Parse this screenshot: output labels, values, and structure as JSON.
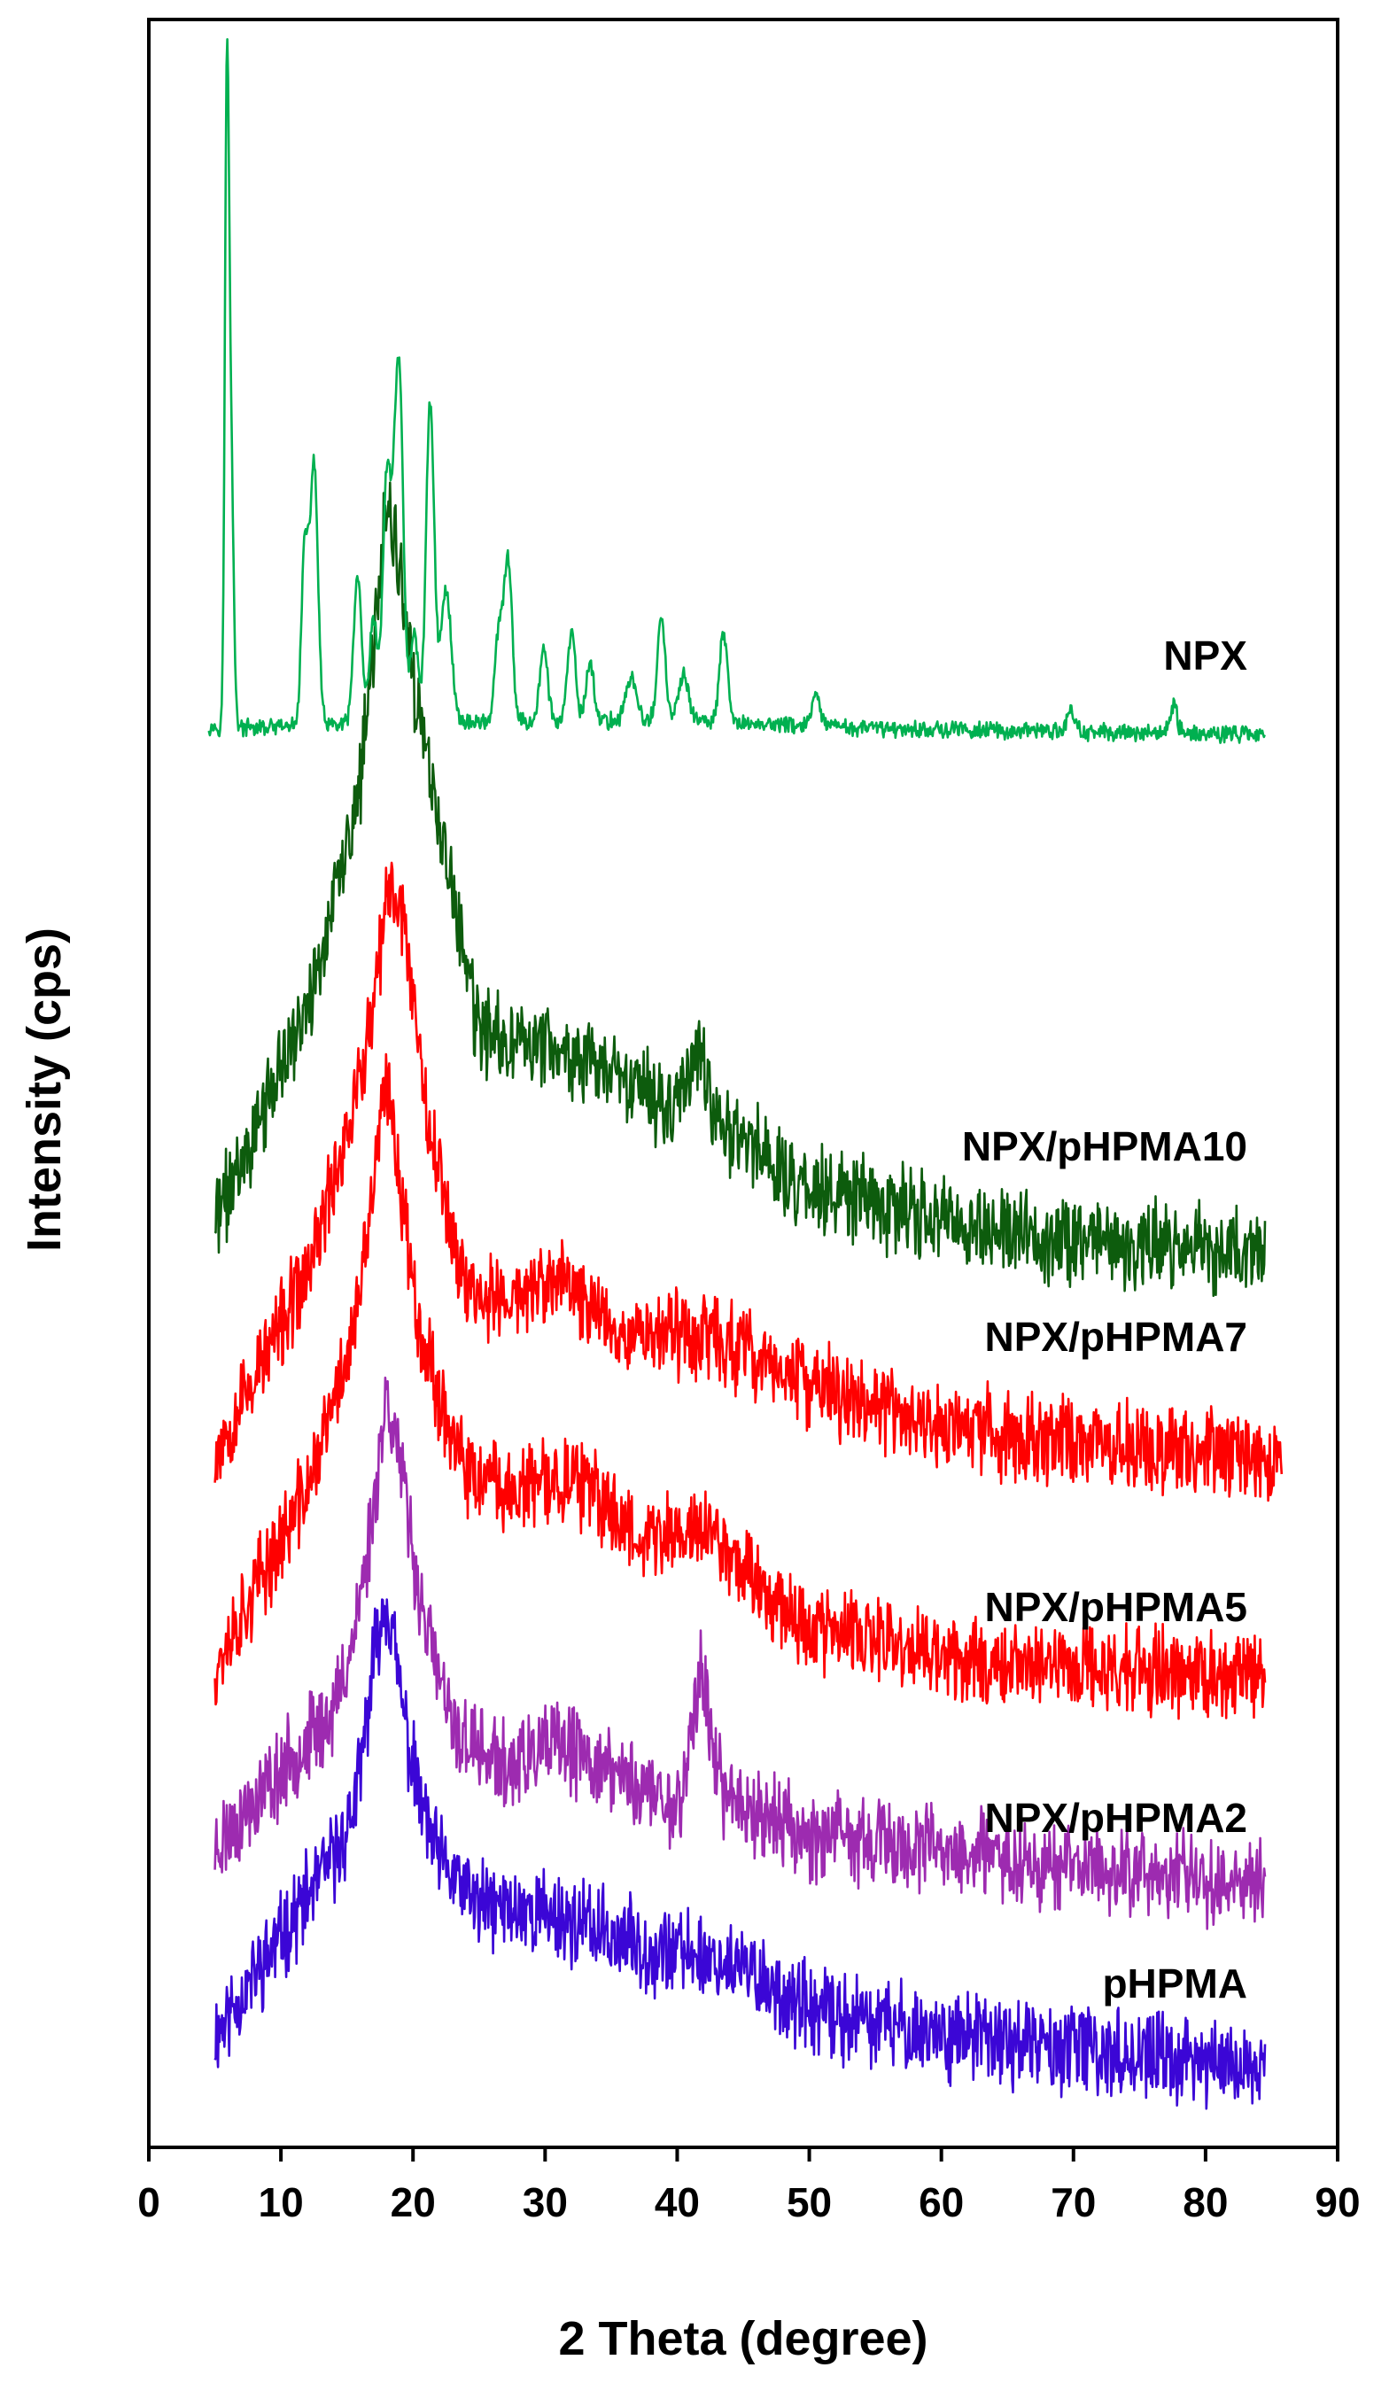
{
  "chart_data": {
    "type": "line",
    "title": "",
    "xlabel": "2 Theta (degree)",
    "ylabel": "Intensity (cps)",
    "xlim": [
      0,
      90
    ],
    "xticks": [
      0,
      10,
      20,
      30,
      40,
      50,
      60,
      70,
      80,
      90
    ],
    "grid": false,
    "legend": "inline labels at right",
    "y_units": "relative intensity (curves vertically offset, no y tick labels)",
    "series": [
      {
        "name": "pHPMA",
        "label": "pHPMA",
        "color": "#3b06d6",
        "seed": 11,
        "noise": 0.9,
        "x_range": [
          5,
          84.5
        ],
        "baseline": [
          [
            5,
            0.0
          ],
          [
            16,
            5.5
          ],
          [
            18,
            8.5
          ],
          [
            22,
            4.4
          ],
          [
            25,
            3.3
          ],
          [
            30,
            3.1
          ],
          [
            38,
            2.2
          ],
          [
            42,
            2.0
          ],
          [
            46,
            1.5
          ],
          [
            50,
            0.55
          ],
          [
            60,
            0.0
          ],
          [
            70,
            -0.4
          ],
          [
            84.5,
            -0.9
          ]
        ],
        "peaks": [
          [
            17.6,
            2.8,
            1.2
          ]
        ]
      },
      {
        "name": "NPX/pHPMA2",
        "label": "NPX/pHPMA2",
        "color": "#9d2bb0",
        "seed": 23,
        "noise": 0.9,
        "x_range": [
          5,
          84.5
        ],
        "baseline": [
          [
            5,
            0.0
          ],
          [
            14,
            3.5
          ],
          [
            17,
            7.0
          ],
          [
            18,
            9.0
          ],
          [
            20,
            6.8
          ],
          [
            23,
            3.0
          ],
          [
            27,
            2.0
          ],
          [
            31,
            2.6
          ],
          [
            36,
            1.8
          ],
          [
            40,
            1.0
          ],
          [
            44,
            1.3
          ],
          [
            50,
            0.3
          ],
          [
            60,
            -0.1
          ],
          [
            70,
            -0.5
          ],
          [
            84.5,
            -0.9
          ]
        ],
        "peaks": [
          [
            18.1,
            2.6,
            1.2
          ],
          [
            41.8,
            3.2,
            0.7
          ]
        ]
      },
      {
        "name": "NPX/pHPMA5",
        "label": "NPX/pHPMA5",
        "color": "#ff0000",
        "seed": 37,
        "noise": 0.9,
        "x_range": [
          5,
          84.5
        ],
        "baseline": [
          [
            5,
            0.0
          ],
          [
            12,
            4.5
          ],
          [
            16,
            9.0
          ],
          [
            18,
            12.0
          ],
          [
            21,
            8.0
          ],
          [
            24,
            4.8
          ],
          [
            28,
            4.5
          ],
          [
            32,
            4.8
          ],
          [
            38,
            3.2
          ],
          [
            42,
            3.6
          ],
          [
            46,
            2.2
          ],
          [
            50,
            1.0
          ],
          [
            60,
            0.2
          ],
          [
            70,
            0.0
          ],
          [
            84.5,
            -0.3
          ]
        ],
        "peaks": [
          [
            18.0,
            2.8,
            1.1
          ]
        ]
      },
      {
        "name": "NPX/pHPMA7",
        "label": "NPX/pHPMA7",
        "color": "#ff0000",
        "seed": 53,
        "noise": 0.9,
        "x_range": [
          5,
          85.8
        ],
        "baseline": [
          [
            5,
            0.0
          ],
          [
            12,
            4.5
          ],
          [
            16,
            9.5
          ],
          [
            18,
            12.0
          ],
          [
            21,
            8.5
          ],
          [
            24,
            4.2
          ],
          [
            27,
            3.8
          ],
          [
            31,
            4.4
          ],
          [
            36,
            3.1
          ],
          [
            42,
            3.0
          ],
          [
            50,
            1.7
          ],
          [
            60,
            0.6
          ],
          [
            70,
            0.3
          ],
          [
            85.8,
            -0.2
          ]
        ],
        "peaks": [
          [
            19.0,
            3.2,
            1.1
          ]
        ]
      },
      {
        "name": "NPX/pHPMA10",
        "label": "NPX/pHPMA10",
        "color": "#0d5c0d",
        "seed": 71,
        "noise": 0.9,
        "x_range": [
          5,
          84.5
        ],
        "baseline": [
          [
            5,
            0.0
          ],
          [
            12,
            5.5
          ],
          [
            16,
            11.0
          ],
          [
            18,
            16.0
          ],
          [
            21,
            12.0
          ],
          [
            25,
            4.8
          ],
          [
            30,
            4.6
          ],
          [
            36,
            3.5
          ],
          [
            42,
            2.8
          ],
          [
            46,
            2.0
          ],
          [
            50,
            0.8
          ],
          [
            60,
            0.0
          ],
          [
            70,
            -0.5
          ],
          [
            84.5,
            -0.8
          ]
        ],
        "peaks": [
          [
            18.2,
            2.5,
            1.0
          ],
          [
            41.5,
            1.5,
            0.8
          ]
        ]
      },
      {
        "name": "NPX",
        "label": "NPX",
        "color": "#00b050",
        "seed": 97,
        "noise": 0.45,
        "x_range": [
          4.5,
          84.5
        ],
        "baseline": [
          [
            4.5,
            0.1
          ],
          [
            8,
            0.0
          ],
          [
            20,
            0.4
          ],
          [
            40,
            0.5
          ],
          [
            55,
            0.0
          ],
          [
            70,
            -0.25
          ],
          [
            84.5,
            -0.4
          ]
        ],
        "peaks": [
          [
            5.9,
            40.0,
            0.15
          ],
          [
            6.2,
            20.0,
            0.2
          ],
          [
            11.8,
            12.0,
            0.25
          ],
          [
            12.5,
            18.0,
            0.3
          ],
          [
            15.8,
            10.0,
            0.3
          ],
          [
            17.0,
            7.0,
            0.3
          ],
          [
            18.0,
            16.0,
            0.3
          ],
          [
            18.6,
            10.0,
            0.3
          ],
          [
            19.0,
            20.0,
            0.3
          ],
          [
            20.1,
            6.0,
            0.3
          ],
          [
            21.3,
            22.0,
            0.3
          ],
          [
            22.5,
            9.0,
            0.4
          ],
          [
            26.5,
            6.0,
            0.3
          ],
          [
            27.2,
            11.0,
            0.3
          ],
          [
            29.9,
            5.0,
            0.3
          ],
          [
            32.0,
            6.0,
            0.3
          ],
          [
            33.4,
            4.0,
            0.3
          ],
          [
            36.5,
            3.0,
            0.4
          ],
          [
            38.8,
            7.0,
            0.3
          ],
          [
            40.5,
            3.0,
            0.4
          ],
          [
            43.5,
            6.0,
            0.3
          ],
          [
            50.5,
            2.0,
            0.3
          ],
          [
            69.8,
            1.5,
            0.3
          ],
          [
            77.6,
            2.0,
            0.25
          ]
        ]
      }
    ]
  }
}
